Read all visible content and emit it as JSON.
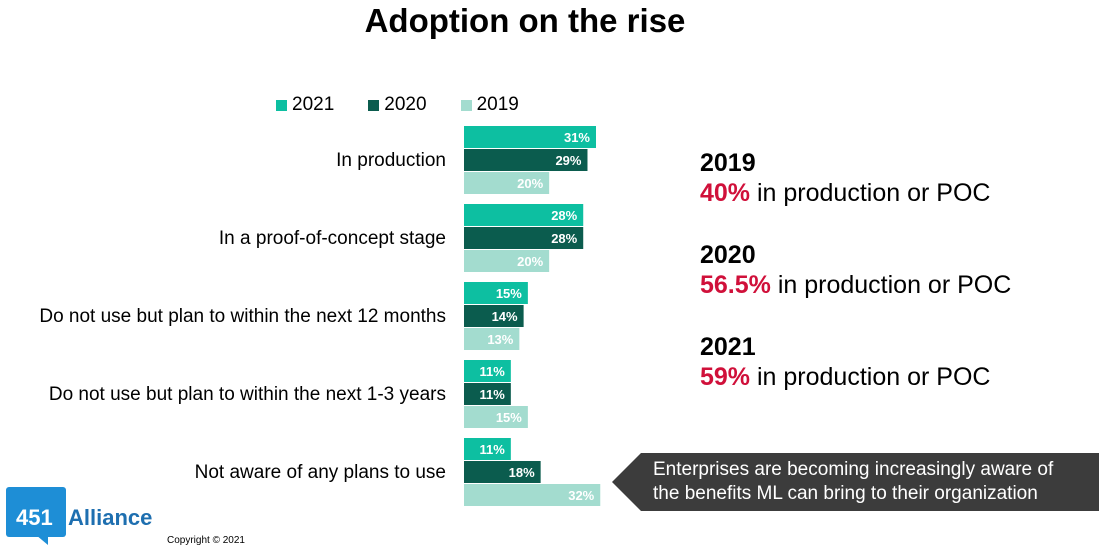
{
  "chart_data": {
    "type": "bar",
    "orientation": "horizontal",
    "title": "Adoption on the rise",
    "categories": [
      "In production",
      "In a proof-of-concept stage",
      "Do not use but plan to within the next 12 months",
      "Do not use but plan to within the next 1-3 years",
      "Not aware of any plans to use"
    ],
    "series": [
      {
        "name": "2021",
        "color": "#0dbfa1",
        "values": [
          31,
          28,
          15,
          11,
          11
        ]
      },
      {
        "name": "2020",
        "color": "#0b5c4e",
        "values": [
          29,
          28,
          14,
          11,
          18
        ]
      },
      {
        "name": "2019",
        "color": "#a3dccf",
        "values": [
          20,
          20,
          13,
          15,
          32
        ]
      }
    ],
    "value_suffix": "%",
    "xlim": [
      0,
      35
    ],
    "legend_position": "top",
    "grid": false
  },
  "legend": {
    "items": [
      {
        "label": "2021",
        "color": "#0dbfa1"
      },
      {
        "label": "2020",
        "color": "#0b5c4e"
      },
      {
        "label": "2019",
        "color": "#a3dccf"
      }
    ]
  },
  "summary": [
    {
      "year": "2019",
      "pct": "40%",
      "text": " in production or POC"
    },
    {
      "year": "2020",
      "pct": "56.5%",
      "text": " in production or POC"
    },
    {
      "year": "2021",
      "pct": "59%",
      "text": " in production or POC"
    }
  ],
  "callout": {
    "line1": "Enterprises are becoming increasingly aware of",
    "line2": "the benefits ML can bring to their organization"
  },
  "logo": {
    "number": "451",
    "text": "Alliance"
  },
  "copyright": "Copyright © 2021"
}
